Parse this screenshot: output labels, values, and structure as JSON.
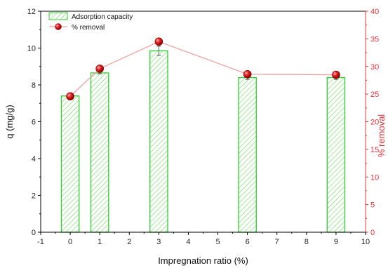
{
  "chart_data": {
    "type": "bar",
    "x": [
      0,
      1,
      3,
      6,
      9
    ],
    "xlabel": "Impregnation ratio (%)",
    "xlim": [
      -1,
      10
    ],
    "x_ticks": [
      "-1",
      "0",
      "1",
      "2",
      "3",
      "4",
      "5",
      "6",
      "7",
      "8",
      "9",
      "10"
    ],
    "ylabel": "q (mg/g)",
    "ylim": [
      0,
      12
    ],
    "y_ticks": [
      "0",
      "2",
      "4",
      "6",
      "8",
      "10",
      "12"
    ],
    "y2label": "% removal",
    "y2lim": [
      0,
      40
    ],
    "y2_ticks": [
      "0",
      "5",
      "10",
      "15",
      "20",
      "25",
      "30",
      "35",
      "40"
    ],
    "series": [
      {
        "name": "Adsorption capacity",
        "type": "bar",
        "axis": "left",
        "values": [
          7.4,
          8.65,
          9.85,
          8.4,
          8.4
        ],
        "errors": [
          0.05,
          0.05,
          0.25,
          0.1,
          0.1
        ],
        "color": "#33cc33",
        "fill": "hatched"
      },
      {
        "name": "% removal",
        "type": "line",
        "axis": "right",
        "values": [
          24.6,
          29.6,
          34.5,
          28.6,
          28.5
        ],
        "color": "#e8333a"
      }
    ],
    "legend": "top-left",
    "grid": false
  }
}
